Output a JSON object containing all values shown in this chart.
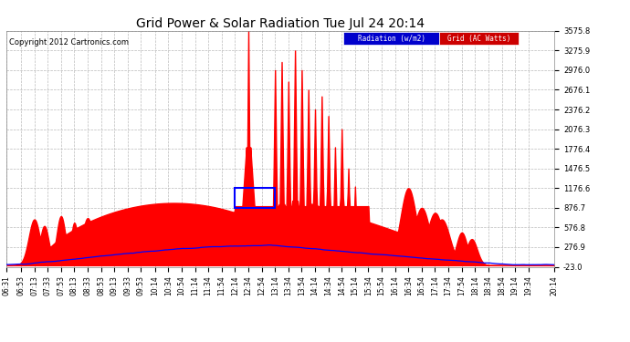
{
  "title": "Grid Power & Solar Radiation Tue Jul 24 20:14",
  "copyright": "Copyright 2012 Cartronics.com",
  "bg_color": "#ffffff",
  "plot_bg_color": "#ffffff",
  "grid_color": "#bbbbbb",
  "radiation_color": "#0000ff",
  "grid_power_color": "#ff0000",
  "ylim_min": -23.0,
  "ylim_max": 3575.8,
  "yticks": [
    -23.0,
    276.9,
    576.8,
    876.7,
    1176.6,
    1476.5,
    1776.4,
    2076.3,
    2376.2,
    2676.1,
    2976.0,
    3275.9,
    3575.8
  ],
  "ytick_labels": [
    "-23.0",
    "276.9",
    "576.8",
    "876.7",
    "1176.6",
    "1476.5",
    "1776.4",
    "2076.3",
    "2376.2",
    "2676.1",
    "2976.0",
    "3275.9",
    "3575.8"
  ],
  "legend_radiation_label": "Radiation (w/m2)",
  "legend_grid_label": "Grid (AC Watts)",
  "legend_radiation_bg": "#0000cc",
  "legend_grid_bg": "#cc0000",
  "time_labels": [
    "06:31",
    "06:53",
    "07:13",
    "07:33",
    "07:53",
    "08:13",
    "08:33",
    "08:53",
    "09:13",
    "09:33",
    "09:53",
    "10:14",
    "10:34",
    "10:54",
    "11:14",
    "11:34",
    "11:54",
    "12:14",
    "12:34",
    "12:54",
    "13:14",
    "13:34",
    "13:54",
    "14:14",
    "14:34",
    "14:54",
    "15:14",
    "15:34",
    "15:54",
    "16:14",
    "16:34",
    "16:54",
    "17:14",
    "17:34",
    "17:54",
    "18:14",
    "18:34",
    "18:54",
    "19:14",
    "19:34",
    "20:14"
  ]
}
